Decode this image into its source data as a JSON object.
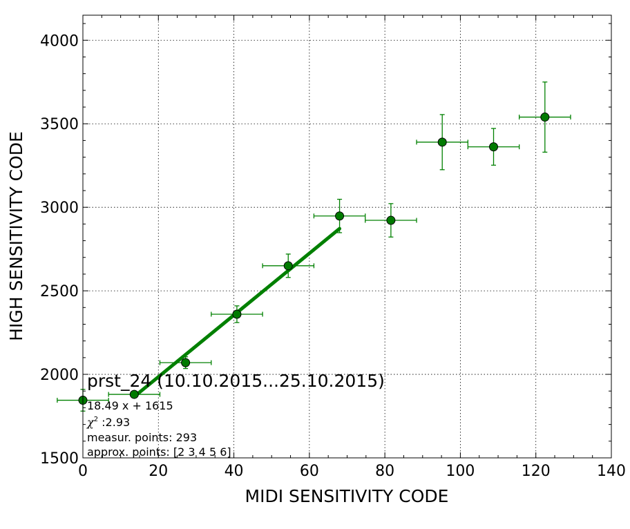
{
  "chart_data": {
    "type": "scatter",
    "xlabel": "MIDI SENSITIVITY CODE",
    "ylabel": "HIGH SENSITIVITY CODE",
    "xlim": [
      0,
      140
    ],
    "ylim": [
      1500,
      4150
    ],
    "xticks": [
      0,
      20,
      40,
      60,
      80,
      100,
      120,
      140
    ],
    "yticks": [
      1500,
      2000,
      2500,
      3000,
      3500,
      4000
    ],
    "grid": true,
    "colors": {
      "points": "#007a00",
      "line": "#008000",
      "errorbars": "#008000"
    },
    "points": [
      {
        "x": 0.0,
        "y": 1845,
        "xerr": 6.8,
        "yerr": 65
      },
      {
        "x": 13.6,
        "y": 1880,
        "xerr": 6.8,
        "yerr": 15
      },
      {
        "x": 27.2,
        "y": 2070,
        "xerr": 6.8,
        "yerr": 35
      },
      {
        "x": 40.8,
        "y": 2360,
        "xerr": 6.8,
        "yerr": 50
      },
      {
        "x": 54.4,
        "y": 2650,
        "xerr": 6.8,
        "yerr": 70
      },
      {
        "x": 68.0,
        "y": 2948,
        "xerr": 6.8,
        "yerr": 100
      },
      {
        "x": 81.6,
        "y": 2922,
        "xerr": 6.8,
        "yerr": 100
      },
      {
        "x": 95.2,
        "y": 3390,
        "xerr": 6.8,
        "yerr": 165
      },
      {
        "x": 108.8,
        "y": 3362,
        "xerr": 6.8,
        "yerr": 110
      },
      {
        "x": 122.4,
        "y": 3540,
        "xerr": 6.8,
        "yerr": 210
      }
    ],
    "fit": {
      "slope": 18.49,
      "intercept": 1615,
      "x_range": [
        13.6,
        68.0
      ]
    },
    "annotations": {
      "title": "prst_24 (10.10.2015...25.10.2015)",
      "equation": "18.49 x + 1615",
      "chi2_symbol": "χ",
      "chi2_sup": "2",
      "chi2_value": " :2.93",
      "measur": "measur. points: 293",
      "approx": "approx. points: [2 3 4 5 6]"
    }
  }
}
